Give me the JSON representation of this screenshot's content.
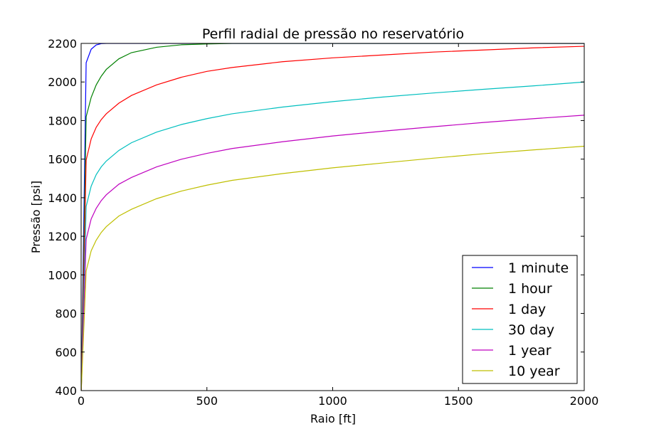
{
  "chart_data": {
    "type": "line",
    "title": "Perfil radial de pressão no reservatório",
    "xlabel": "Raio [ft]",
    "ylabel": "Pressão [psi]",
    "xlim": [
      0,
      2000
    ],
    "ylim": [
      400,
      2200
    ],
    "xticks": [
      "0",
      "500",
      "1000",
      "1500",
      "2000"
    ],
    "yticks": [
      "400",
      "600",
      "800",
      "1000",
      "1200",
      "1400",
      "1600",
      "1800",
      "2000",
      "2200"
    ],
    "grid": false,
    "legend_position": "lower-right",
    "x": [
      0.5,
      20,
      40,
      60,
      80,
      100,
      150,
      200,
      300,
      400,
      500,
      600,
      800,
      1000,
      1200,
      1400,
      1600,
      1800,
      2000
    ],
    "series": [
      {
        "name": "1 minute",
        "color": "#0000ff",
        "values": [
          400,
          2100,
          2170,
          2192,
          2199,
          2200,
          2200,
          2200,
          2200,
          2200,
          2200,
          2200,
          2200,
          2200,
          2200,
          2200,
          2200,
          2200,
          2200
        ]
      },
      {
        "name": "1 hour",
        "color": "#008000",
        "values": [
          400,
          1820,
          1920,
          1985,
          2030,
          2065,
          2120,
          2152,
          2180,
          2193,
          2197,
          2200,
          2200,
          2200,
          2200,
          2200,
          2200,
          2200,
          2200
        ]
      },
      {
        "name": "1 day",
        "color": "#ff0000",
        "values": [
          400,
          1595,
          1705,
          1765,
          1805,
          1835,
          1890,
          1930,
          1985,
          2025,
          2055,
          2075,
          2105,
          2125,
          2140,
          2155,
          2166,
          2177,
          2185
        ]
      },
      {
        "name": "30 day",
        "color": "#00bfbf",
        "values": [
          400,
          1355,
          1460,
          1520,
          1560,
          1590,
          1645,
          1685,
          1740,
          1780,
          1810,
          1835,
          1870,
          1898,
          1922,
          1943,
          1962,
          1980,
          2000
        ]
      },
      {
        "name": "1 year",
        "color": "#bf00bf",
        "values": [
          400,
          1185,
          1290,
          1345,
          1385,
          1415,
          1470,
          1505,
          1560,
          1600,
          1630,
          1655,
          1690,
          1720,
          1745,
          1768,
          1790,
          1810,
          1828
        ]
      },
      {
        "name": "10 year",
        "color": "#bfbf00",
        "values": [
          400,
          1020,
          1125,
          1180,
          1220,
          1250,
          1305,
          1340,
          1395,
          1435,
          1465,
          1490,
          1525,
          1555,
          1580,
          1605,
          1628,
          1648,
          1667
        ]
      }
    ]
  }
}
